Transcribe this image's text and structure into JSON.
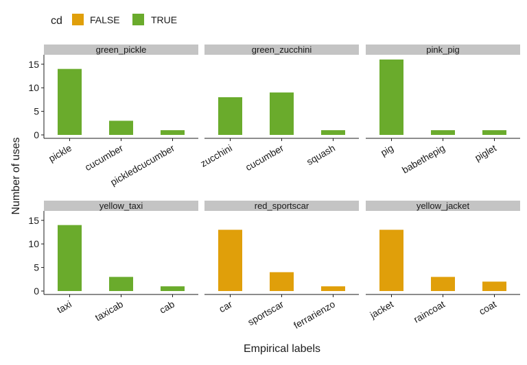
{
  "colors": {
    "FALSE": "#e09f0a",
    "TRUE": "#6aab2c",
    "strip": "#c4c4c4"
  },
  "legend": {
    "title": "cd",
    "items": [
      {
        "label": "FALSE",
        "color_key": "FALSE"
      },
      {
        "label": "TRUE",
        "color_key": "TRUE"
      }
    ]
  },
  "chart_data": {
    "type": "bar",
    "xlabel": "Empirical labels",
    "ylabel": "Number of uses",
    "ylim": [
      0,
      17
    ],
    "y_ticks": [
      0,
      5,
      10,
      15
    ],
    "legend_position": "top-left",
    "grid": false,
    "panels": [
      {
        "title": "green_pickle",
        "categories": [
          "pickle",
          "cucumber",
          "pickledcucumber"
        ],
        "values": [
          14,
          3,
          1
        ],
        "cd": "TRUE"
      },
      {
        "title": "green_zucchini",
        "categories": [
          "zucchini",
          "cucumber",
          "squash"
        ],
        "values": [
          8,
          9,
          1
        ],
        "cd": "TRUE"
      },
      {
        "title": "pink_pig",
        "categories": [
          "pig",
          "babethepig",
          "piglet"
        ],
        "values": [
          16,
          1,
          1
        ],
        "cd": "TRUE"
      },
      {
        "title": "yellow_taxi",
        "categories": [
          "taxi",
          "taxicab",
          "cab"
        ],
        "values": [
          14,
          3,
          1
        ],
        "cd": "TRUE"
      },
      {
        "title": "red_sportscar",
        "categories": [
          "car",
          "sportscar",
          "ferrarienzo"
        ],
        "values": [
          13,
          4,
          1
        ],
        "cd": "FALSE"
      },
      {
        "title": "yellow_jacket",
        "categories": [
          "jacket",
          "raincoat",
          "coat"
        ],
        "values": [
          13,
          3,
          2
        ],
        "cd": "FALSE"
      }
    ]
  }
}
